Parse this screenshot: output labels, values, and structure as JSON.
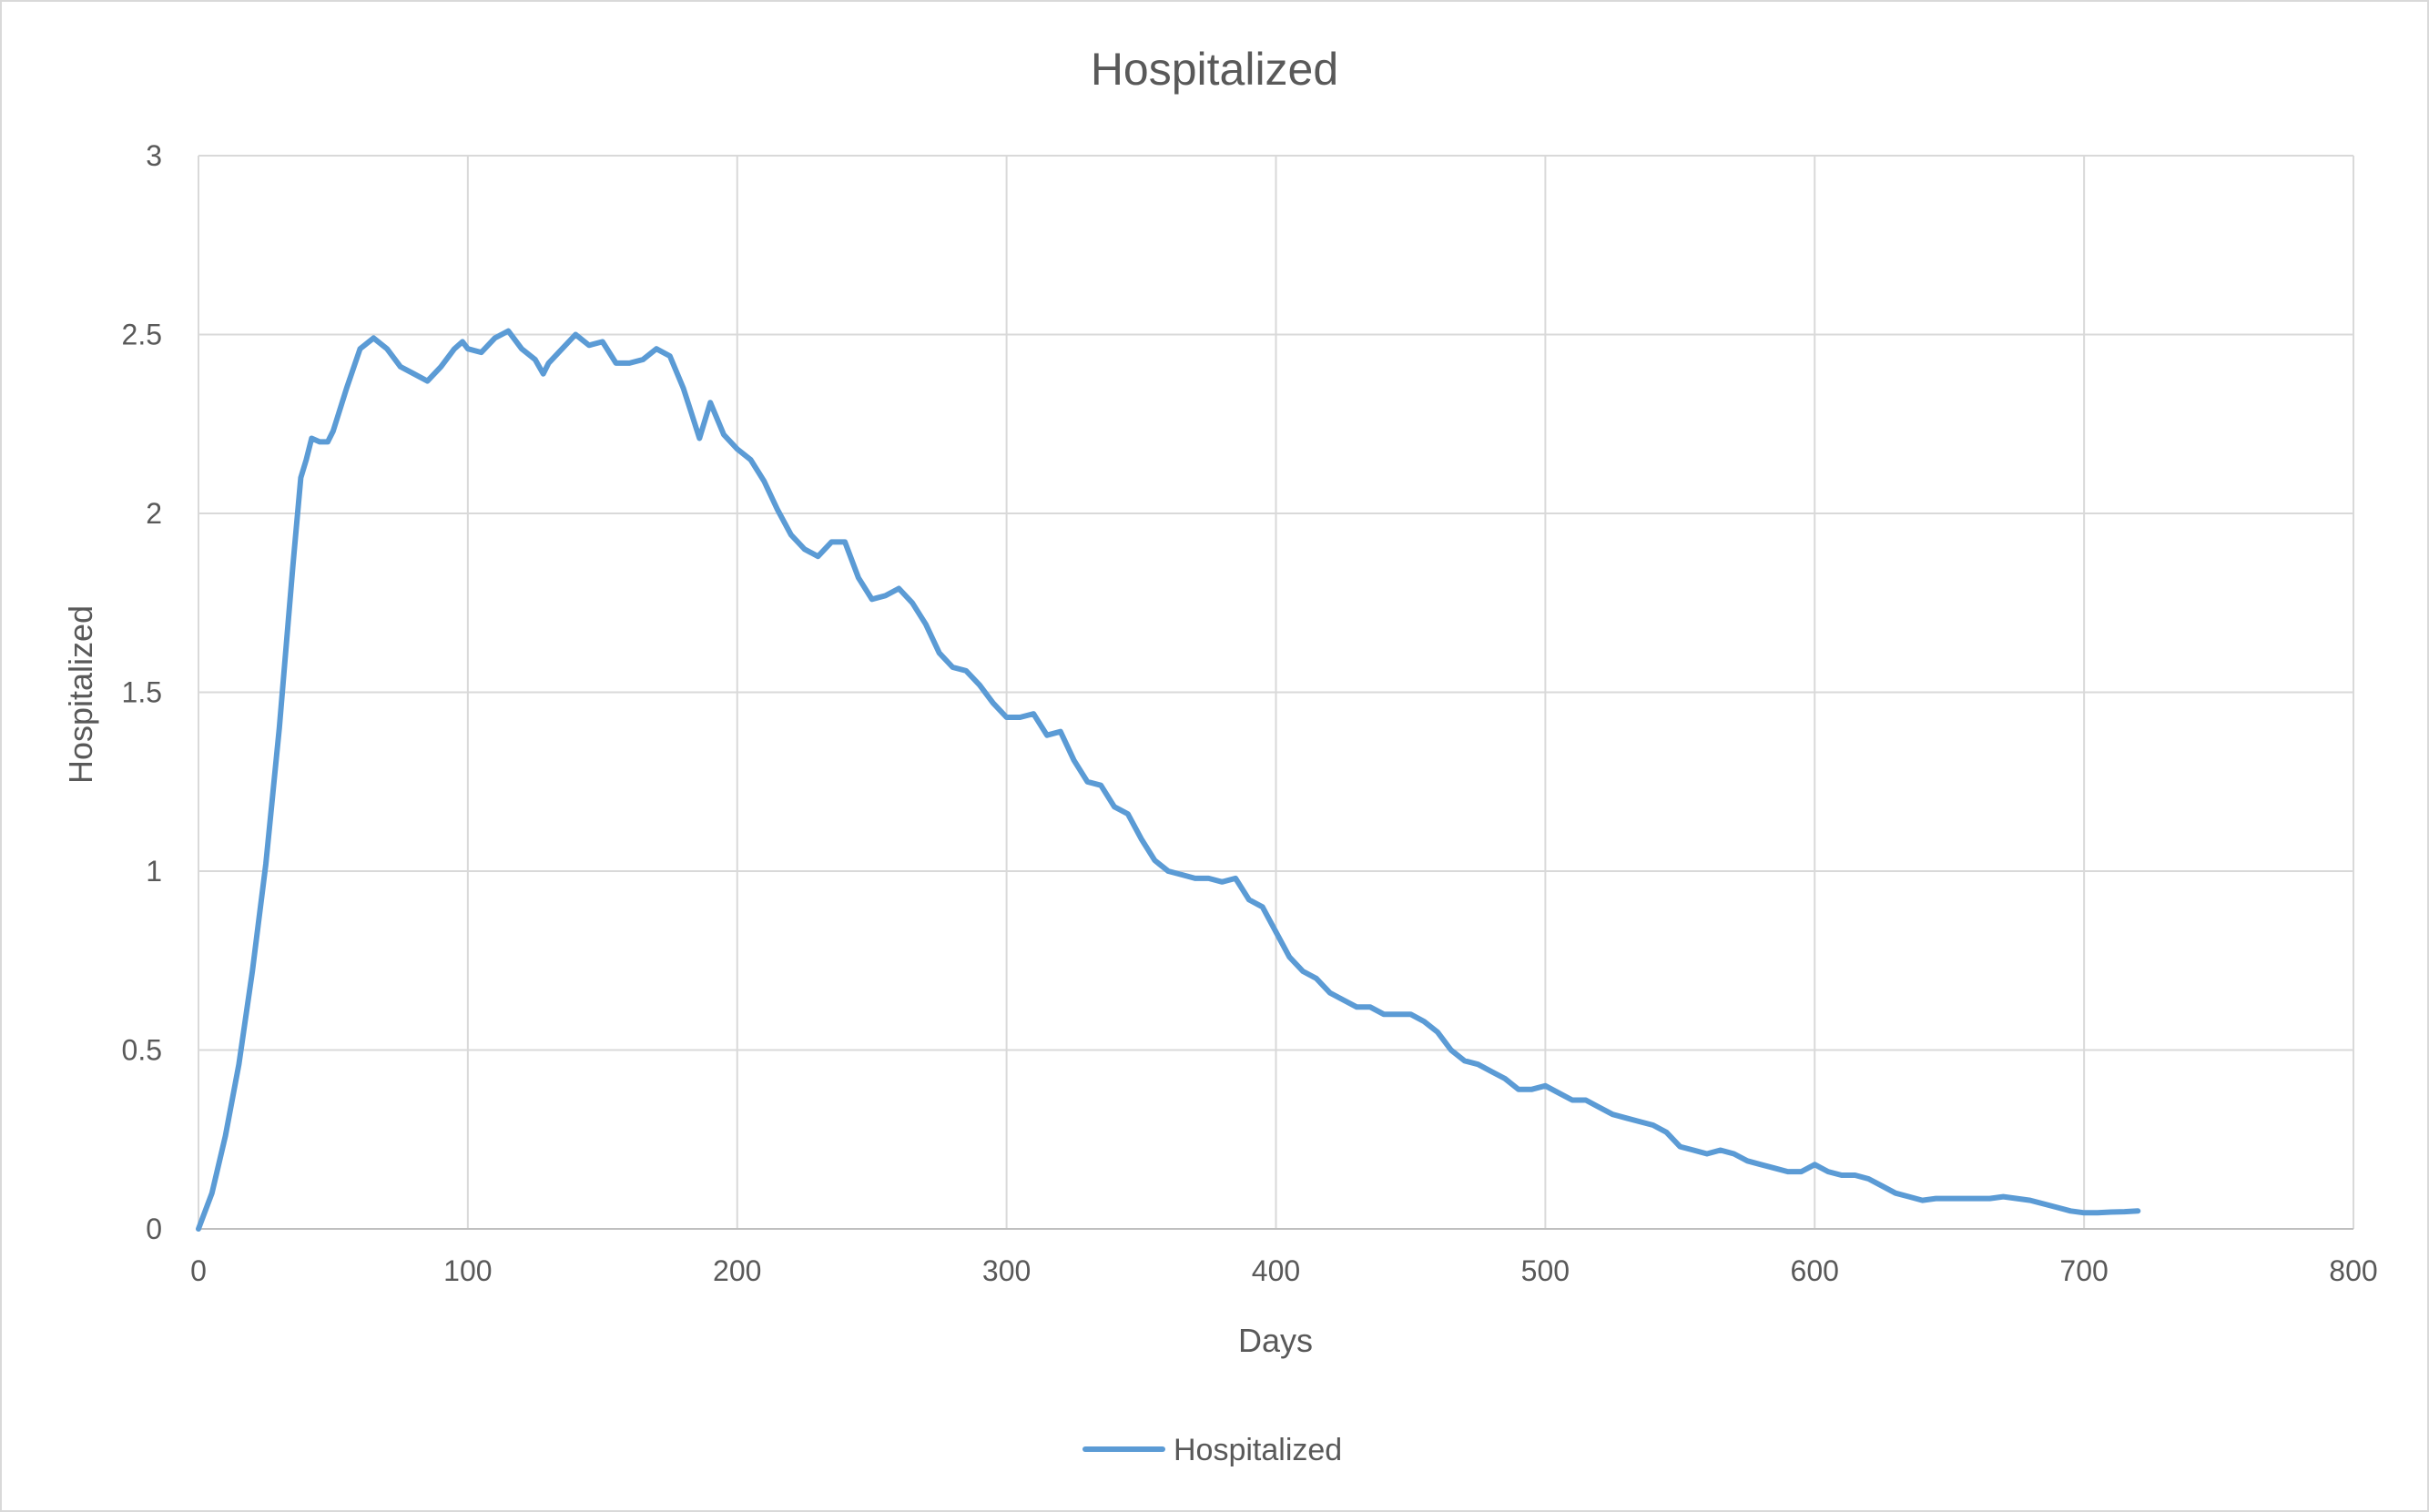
{
  "chart_data": {
    "type": "line",
    "title": "Hospitalized",
    "xlabel": "Days",
    "ylabel": "Hospitalized",
    "xlim": [
      0,
      800
    ],
    "ylim": [
      0,
      3
    ],
    "x_ticks": [
      "0",
      "100",
      "200",
      "300",
      "400",
      "500",
      "600",
      "700",
      "800"
    ],
    "y_ticks": [
      "0",
      "0.5",
      "1",
      "1.5",
      "2",
      "2.5",
      "3"
    ],
    "grid": true,
    "legend_position": "bottom",
    "series": [
      {
        "name": "Hospitalized",
        "color": "#5b9bd5",
        "x": [
          0,
          5,
          10,
          15,
          20,
          25,
          30,
          35,
          38,
          40,
          42,
          45,
          48,
          50,
          55,
          60,
          65,
          70,
          75,
          80,
          85,
          90,
          95,
          98,
          100,
          105,
          110,
          115,
          120,
          125,
          128,
          130,
          135,
          140,
          145,
          150,
          155,
          160,
          165,
          170,
          175,
          180,
          183,
          186,
          190,
          195,
          200,
          205,
          210,
          215,
          220,
          225,
          230,
          235,
          240,
          245,
          250,
          255,
          260,
          265,
          270,
          275,
          280,
          285,
          290,
          295,
          300,
          305,
          310,
          315,
          320,
          325,
          330,
          335,
          340,
          345,
          350,
          355,
          360,
          365,
          370,
          375,
          380,
          385,
          390,
          395,
          400,
          405,
          410,
          415,
          420,
          425,
          430,
          435,
          440,
          445,
          450,
          455,
          460,
          465,
          470,
          475,
          480,
          485,
          490,
          495,
          500,
          505,
          510,
          515,
          520,
          525,
          530,
          535,
          540,
          545,
          550,
          555,
          560,
          565,
          570,
          575,
          580,
          585,
          590,
          595,
          600,
          605,
          610,
          615,
          620,
          625,
          630,
          635,
          640,
          645,
          650,
          655,
          660,
          665,
          670,
          675,
          680,
          685,
          690,
          695,
          700,
          705,
          710,
          715,
          720
        ],
        "values": [
          0.0,
          0.1,
          0.26,
          0.46,
          0.72,
          1.02,
          1.4,
          1.85,
          2.1,
          2.15,
          2.21,
          2.2,
          2.2,
          2.23,
          2.35,
          2.46,
          2.49,
          2.46,
          2.41,
          2.39,
          2.37,
          2.41,
          2.46,
          2.48,
          2.46,
          2.45,
          2.49,
          2.51,
          2.46,
          2.43,
          2.39,
          2.42,
          2.46,
          2.5,
          2.47,
          2.48,
          2.42,
          2.42,
          2.43,
          2.46,
          2.44,
          2.35,
          2.28,
          2.21,
          2.31,
          2.22,
          2.18,
          2.15,
          2.09,
          2.01,
          1.94,
          1.9,
          1.88,
          1.92,
          1.92,
          1.82,
          1.76,
          1.77,
          1.79,
          1.75,
          1.69,
          1.61,
          1.57,
          1.56,
          1.52,
          1.47,
          1.43,
          1.43,
          1.44,
          1.38,
          1.39,
          1.31,
          1.25,
          1.24,
          1.18,
          1.16,
          1.09,
          1.03,
          1.0,
          0.99,
          0.98,
          0.98,
          0.97,
          0.98,
          0.92,
          0.9,
          0.83,
          0.76,
          0.72,
          0.7,
          0.66,
          0.64,
          0.62,
          0.62,
          0.6,
          0.6,
          0.6,
          0.58,
          0.55,
          0.5,
          0.47,
          0.46,
          0.44,
          0.42,
          0.39,
          0.39,
          0.4,
          0.38,
          0.36,
          0.36,
          0.34,
          0.32,
          0.31,
          0.3,
          0.29,
          0.27,
          0.23,
          0.22,
          0.21,
          0.22,
          0.21,
          0.19,
          0.18,
          0.17,
          0.16,
          0.16,
          0.18,
          0.16,
          0.15,
          0.15,
          0.14,
          0.12,
          0.1,
          0.09,
          0.08,
          0.085,
          0.085,
          0.085,
          0.085,
          0.085,
          0.09,
          0.085,
          0.08,
          0.07,
          0.06,
          0.05,
          0.045,
          0.045,
          0.047,
          0.048,
          0.05
        ]
      }
    ]
  }
}
